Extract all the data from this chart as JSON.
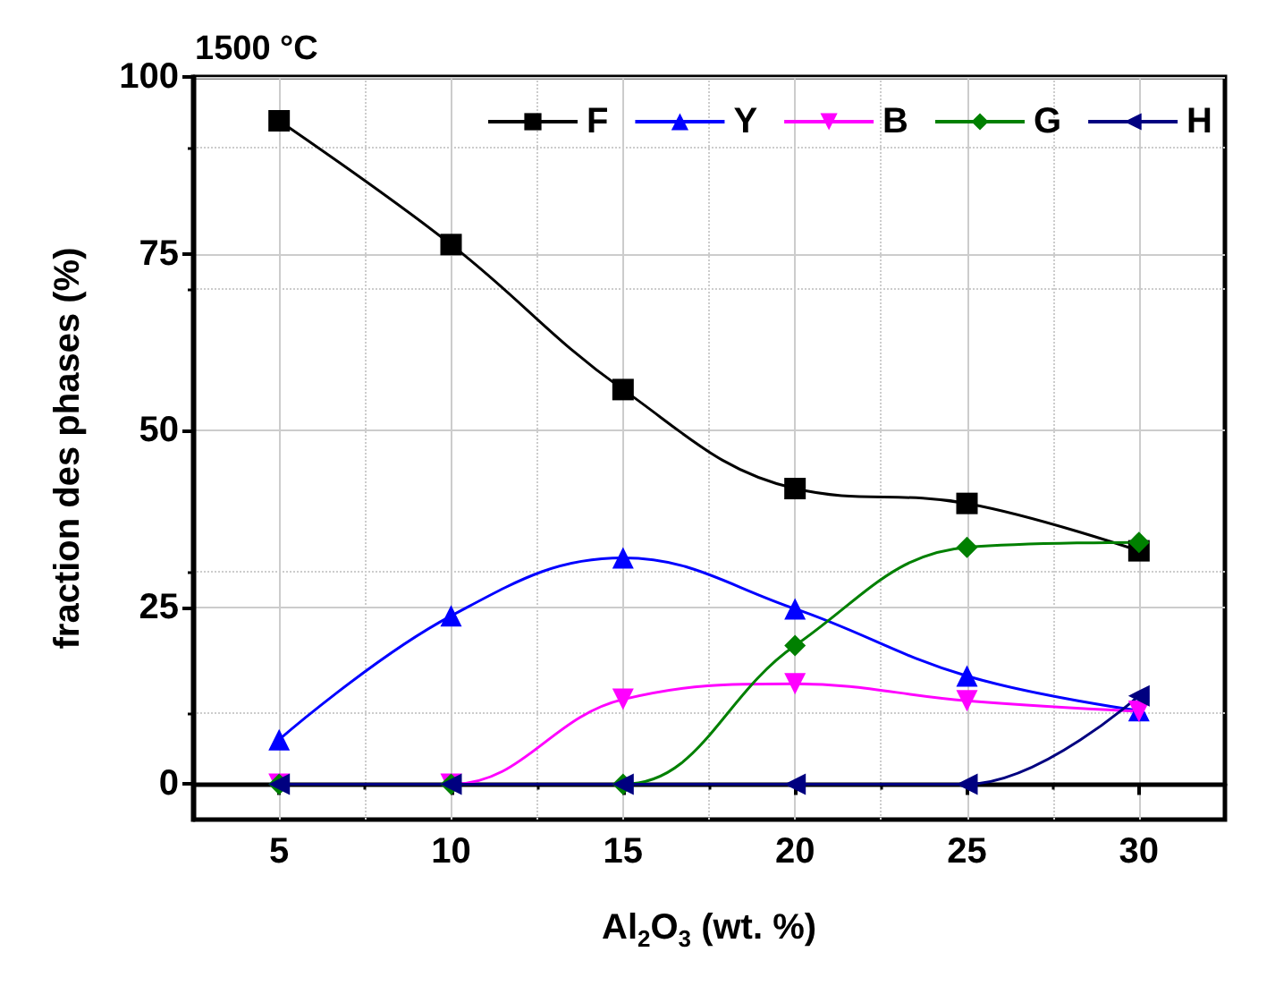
{
  "chart_data": {
    "type": "line",
    "title": "1500 °C",
    "xlabel": "Al$_{2}$O$_{3}$ (wt. %)",
    "ylabel": "fraction des phases (%)",
    "x": [
      5,
      10,
      15,
      20,
      25,
      30
    ],
    "series": [
      {
        "name": "F",
        "color": "#000000",
        "marker": "square",
        "values": [
          93.8,
          76.3,
          55.8,
          41.8,
          39.7,
          33
        ]
      },
      {
        "name": "Y",
        "color": "#0000ff",
        "marker": "triangle",
        "values": [
          6.3,
          23.8,
          32,
          24.8,
          15.3,
          10.4
        ]
      },
      {
        "name": "B",
        "color": "#ff00ff",
        "marker": "triangle-down",
        "values": [
          0,
          0,
          12,
          14.2,
          11.8,
          10.3
        ]
      },
      {
        "name": "G",
        "color": "#008000",
        "marker": "diamond",
        "values": [
          0,
          0,
          0,
          19.6,
          33.5,
          34.2
        ]
      },
      {
        "name": "H",
        "color": "#000080",
        "marker": "triangle-left",
        "values": [
          0,
          0,
          0,
          0,
          0,
          12.5
        ]
      }
    ],
    "xlim": [
      2.5,
      32.5
    ],
    "xticks": [
      5,
      10,
      15,
      20,
      25,
      30
    ],
    "ylim": [
      -5,
      100
    ],
    "yticks": [
      0,
      25,
      50,
      75,
      100
    ],
    "grid": true,
    "legend": "top right",
    "line_style": "solid"
  }
}
